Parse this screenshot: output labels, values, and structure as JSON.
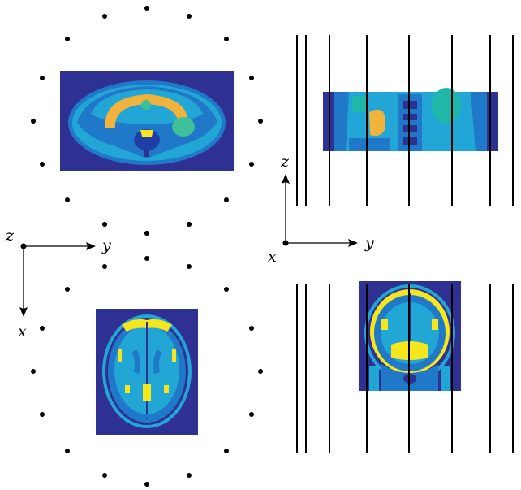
{
  "axes": {
    "left": {
      "origin_label": "z",
      "horizontal_label": "y",
      "vertical_label": "x"
    },
    "right": {
      "vertical_label": "z",
      "horizontal_label": "y",
      "origin_label": "x"
    }
  },
  "panels": {
    "abdomen_axial": {
      "description_icon": "mri-abdomen-axial-slice"
    },
    "torso_coronal": {
      "description_icon": "mri-torso-coronal-slice"
    },
    "brain_axial": {
      "description_icon": "mri-brain-axial-slice"
    },
    "brain_coronal": {
      "description_icon": "mri-brain-coronal-slice"
    }
  },
  "colors": {
    "background_tissue": "#2e3192",
    "dark_blue": "#1f3ea8",
    "mid_blue": "#1f78c8",
    "light_blue": "#22a6d6",
    "teal": "#1fb8a8",
    "orange": "#f2b33d",
    "yellow": "#f5e61e",
    "green_teal": "#3fbf9a"
  }
}
